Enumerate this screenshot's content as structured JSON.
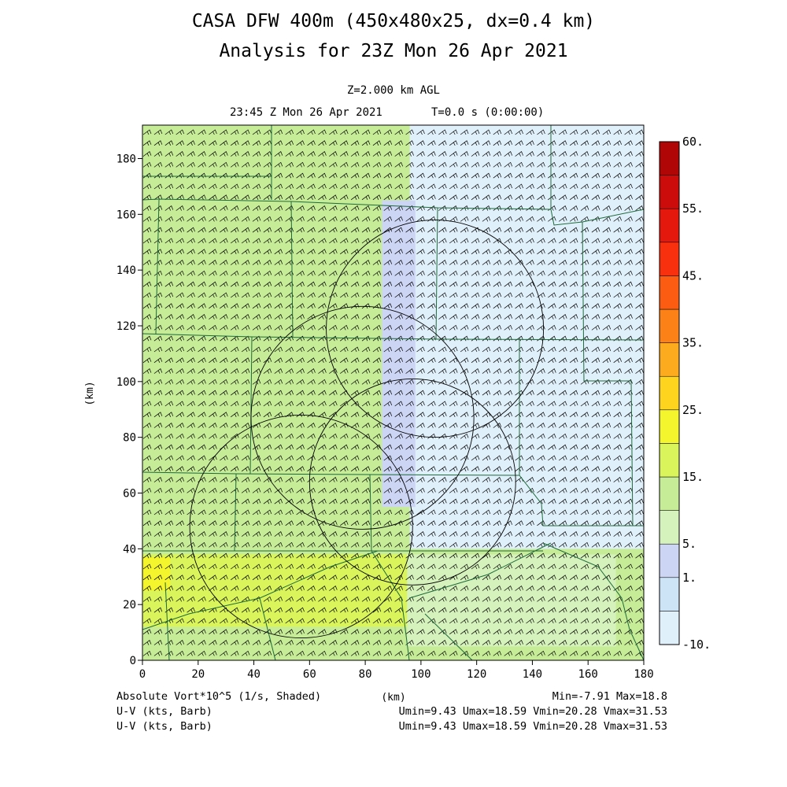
{
  "header": {
    "title_line1": "CASA DFW 400m (450x480x25, dx=0.4 km)",
    "title_line2": "Analysis for 23Z Mon 26 Apr 2021",
    "level": "Z=2.000 km AGL",
    "valid_time": "23:45 Z Mon 26 Apr 2021",
    "forecast_time": "T=0.0 s (0:00:00)"
  },
  "footer": {
    "field1_label": "Absolute Vort*10^5 (1/s, Shaded)",
    "field1_stats": "Min=-7.91 Max=18.8",
    "field2_label": "U-V (kts, Barb)",
    "field2_stats": "Umin=9.43 Umax=18.59 Vmin=20.28 Vmax=31.53",
    "field3_label": "U-V (kts, Barb)",
    "field3_stats": "Umin=9.43 Umax=18.59 Vmin=20.28 Vmax=31.53"
  },
  "chart_data": {
    "type": "heatmap",
    "xlabel": "(km)",
    "ylabel": "(km)",
    "xlim": [
      0,
      180
    ],
    "ylim": [
      0,
      192
    ],
    "x_ticks": [
      "0",
      "20",
      "40",
      "60",
      "80",
      "100",
      "120",
      "140",
      "160",
      "180"
    ],
    "y_ticks": [
      "0",
      "20",
      "40",
      "60",
      "80",
      "100",
      "120",
      "140",
      "160",
      "180"
    ],
    "colorbar": {
      "levels": [
        -10,
        0,
        1,
        5,
        10,
        15,
        20,
        25,
        30,
        35,
        40,
        45,
        50,
        55,
        60
      ],
      "colors": [
        "#e0f0fa",
        "#cce4f6",
        "#ccd6f4",
        "#d6f2bc",
        "#c6ec98",
        "#daf55c",
        "#f4f52c",
        "#fed41e",
        "#fcaa1e",
        "#fc8218",
        "#fc5c12",
        "#f8300e",
        "#e4180c",
        "#cc0c0a",
        "#b00606"
      ],
      "labels": [
        {
          "text": "60.",
          "level": 60
        },
        {
          "text": "55.",
          "level": 55
        },
        {
          "text": "45.",
          "level": 45
        },
        {
          "text": "35.",
          "level": 35
        },
        {
          "text": "25.",
          "level": 25
        },
        {
          "text": "15.",
          "level": 15
        },
        {
          "text": "5.",
          "level": 5
        },
        {
          "text": "1.",
          "level": 1
        },
        {
          "text": "-10.",
          "level": -10
        }
      ]
    },
    "shaded_regions": [
      {
        "name": "background",
        "color": "#c6ec98",
        "x": [
          0,
          180
        ],
        "y": [
          0,
          192
        ]
      },
      {
        "name": "east",
        "color": "#e0f0fa",
        "x": [
          96,
          180
        ],
        "y": [
          40,
          192
        ]
      },
      {
        "name": "band",
        "color": "#ccd6f4",
        "x": [
          86,
          98
        ],
        "y": [
          55,
          165
        ]
      },
      {
        "name": "south-band",
        "color": "#daf55c",
        "x": [
          0,
          140
        ],
        "y": [
          12,
          38
        ]
      },
      {
        "name": "southwest",
        "color": "#f4f52c",
        "x": [
          0,
          10
        ],
        "y": [
          25,
          37
        ]
      },
      {
        "name": "east-south",
        "color": "#d6f2bc",
        "x": [
          95,
          170
        ],
        "y": [
          5,
          38
        ]
      }
    ],
    "range_rings": [
      {
        "center": [
          105,
          119
        ],
        "radius": 39
      },
      {
        "center": [
          79,
          87
        ],
        "radius": 40
      },
      {
        "center": [
          97,
          64
        ],
        "radius": 37
      },
      {
        "center": [
          57,
          48
        ],
        "radius": 40
      }
    ],
    "barb_field": {
      "u_range": [
        9.43,
        18.59
      ],
      "v_range": [
        20.28,
        31.53
      ],
      "units": "kts"
    }
  }
}
